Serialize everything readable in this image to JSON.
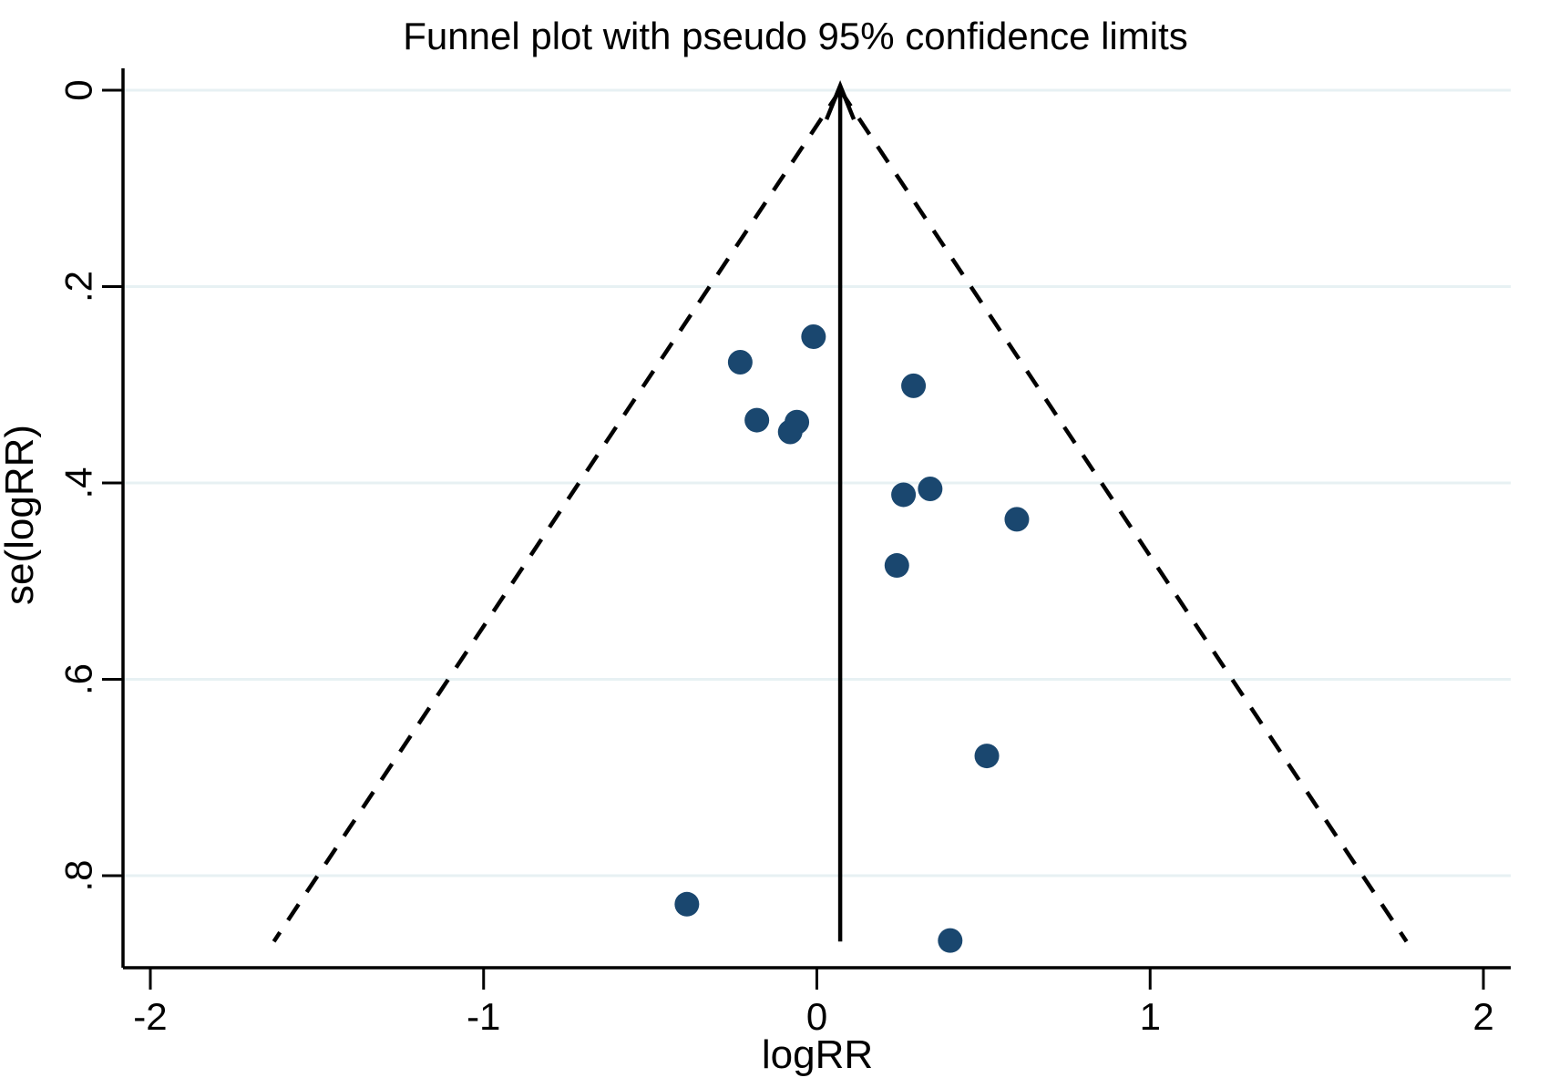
{
  "figure": {
    "background": "#ffffff"
  },
  "chart_data": {
    "type": "scatter",
    "title": "Funnel plot with pseudo 95% confidence limits",
    "xlabel": "logRR",
    "ylabel": "se(logRR)",
    "legend": "none",
    "grid": "horizontal",
    "x_ticks": [
      -2,
      -1,
      0,
      1,
      2
    ],
    "x_tick_labels": [
      "-2",
      "-1",
      "0",
      "1",
      "2"
    ],
    "y_ticks": [
      0,
      0.2,
      0.4,
      0.6,
      0.8
    ],
    "y_tick_labels": [
      "0",
      ".2",
      ".4",
      ".6",
      ".8"
    ],
    "x_display_range": [
      -2.082,
      2.082
    ],
    "y_display_range": [
      -0.0223,
      0.8937
    ],
    "y_axis_inverted_note": "se increases downward",
    "pooled_estimate_logRR": 0.07,
    "funnel_max_se": 0.867,
    "ci_multiplier": 1.96,
    "points": [
      {
        "logRR": -0.01,
        "se": 0.251
      },
      {
        "logRR": -0.23,
        "se": 0.277
      },
      {
        "logRR": 0.29,
        "se": 0.301
      },
      {
        "logRR": -0.18,
        "se": 0.336
      },
      {
        "logRR": -0.06,
        "se": 0.338
      },
      {
        "logRR": -0.08,
        "se": 0.348
      },
      {
        "logRR": 0.34,
        "se": 0.406
      },
      {
        "logRR": 0.26,
        "se": 0.412
      },
      {
        "logRR": 0.6,
        "se": 0.437
      },
      {
        "logRR": 0.24,
        "se": 0.484
      },
      {
        "logRR": 0.51,
        "se": 0.678
      },
      {
        "logRR": -0.39,
        "se": 0.829
      },
      {
        "logRR": 0.4,
        "se": 0.866
      }
    ],
    "colors": {
      "marker": "#1a476f",
      "grid": "#e7f1f3",
      "axis": "#000000",
      "funnel_line": "#000000",
      "pooled_line": "#000000"
    }
  }
}
